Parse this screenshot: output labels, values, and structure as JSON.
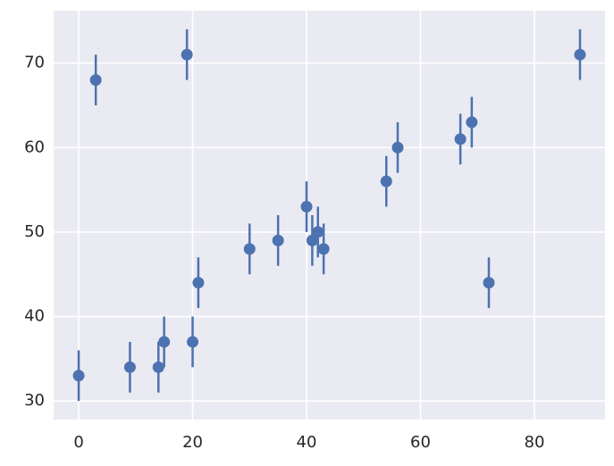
{
  "chart_data": {
    "type": "errorbar",
    "x": [
      0,
      3,
      9,
      14,
      15,
      19,
      20,
      21,
      30,
      35,
      40,
      41,
      42,
      43,
      54,
      56,
      67,
      69,
      72,
      88
    ],
    "y": [
      33,
      68,
      34,
      34,
      37,
      71,
      37,
      44,
      48,
      49,
      53,
      49,
      50,
      48,
      56,
      60,
      61,
      63,
      44,
      71
    ],
    "yerr": [
      3,
      3,
      3,
      3,
      3,
      3,
      3,
      3,
      3,
      3,
      3,
      3,
      3,
      3,
      3,
      3,
      3,
      3,
      3,
      3
    ],
    "color": "#4c72b0",
    "xlim": [
      -4.4,
      92.4
    ],
    "ylim": [
      27.8,
      76.2
    ],
    "xticks": [
      0,
      20,
      40,
      60,
      80
    ],
    "yticks": [
      30,
      40,
      50,
      60,
      70
    ],
    "grid": true
  }
}
